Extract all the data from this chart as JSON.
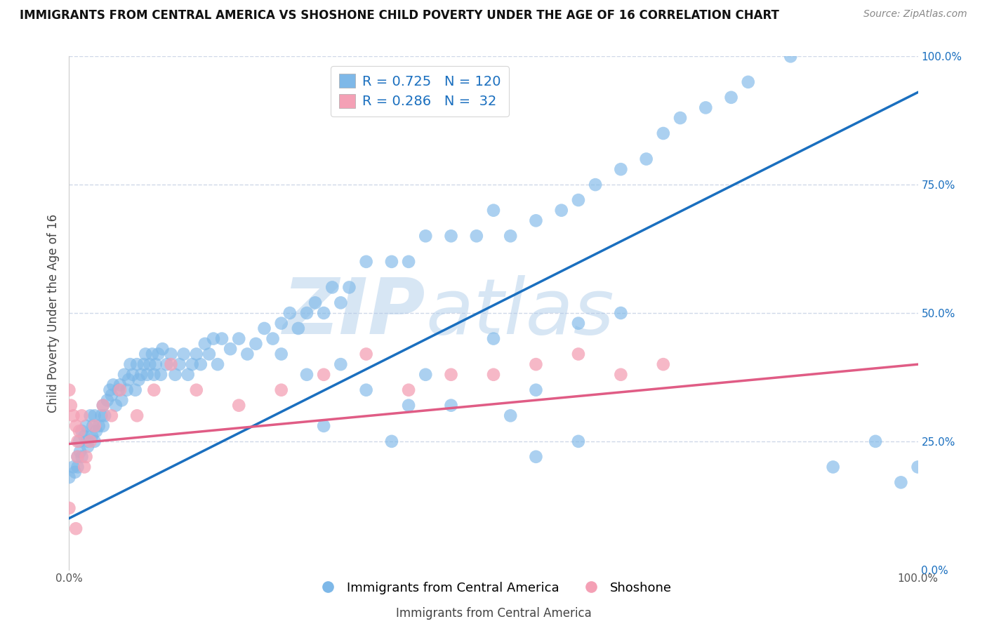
{
  "title": "IMMIGRANTS FROM CENTRAL AMERICA VS SHOSHONE CHILD POVERTY UNDER THE AGE OF 16 CORRELATION CHART",
  "source": "Source: ZipAtlas.com",
  "ylabel": "Child Poverty Under the Age of 16",
  "x_bottom_label": "Immigrants from Central America",
  "watermark_zip": "ZIP",
  "watermark_atlas": "atlas",
  "blue_label": "Immigrants from Central America",
  "pink_label": "Shoshone",
  "blue_R": 0.725,
  "blue_N": 120,
  "pink_R": 0.286,
  "pink_N": 32,
  "blue_color": "#7EB8E8",
  "pink_color": "#F4A0B5",
  "blue_line_color": "#1A6FBF",
  "pink_line_color": "#E05C85",
  "background_color": "#ffffff",
  "grid_color": "#d0d8e8",
  "xlim": [
    0.0,
    1.0
  ],
  "ylim": [
    0.0,
    1.0
  ],
  "right_ytick_labels": [
    "0.0%",
    "25.0%",
    "50.0%",
    "75.0%",
    "100.0%"
  ],
  "right_ytick_values": [
    0.0,
    0.25,
    0.5,
    0.75,
    1.0
  ],
  "blue_scatter_x": [
    0.0,
    0.005,
    0.007,
    0.01,
    0.01,
    0.012,
    0.013,
    0.015,
    0.015,
    0.018,
    0.02,
    0.022,
    0.022,
    0.025,
    0.027,
    0.028,
    0.03,
    0.03,
    0.032,
    0.035,
    0.038,
    0.04,
    0.04,
    0.042,
    0.045,
    0.048,
    0.05,
    0.052,
    0.055,
    0.058,
    0.06,
    0.062,
    0.065,
    0.068,
    0.07,
    0.072,
    0.075,
    0.078,
    0.08,
    0.082,
    0.085,
    0.088,
    0.09,
    0.092,
    0.095,
    0.098,
    0.1,
    0.102,
    0.105,
    0.108,
    0.11,
    0.115,
    0.12,
    0.125,
    0.13,
    0.135,
    0.14,
    0.145,
    0.15,
    0.155,
    0.16,
    0.165,
    0.17,
    0.175,
    0.18,
    0.19,
    0.2,
    0.21,
    0.22,
    0.23,
    0.24,
    0.25,
    0.26,
    0.27,
    0.28,
    0.29,
    0.3,
    0.31,
    0.32,
    0.33,
    0.35,
    0.38,
    0.4,
    0.42,
    0.45,
    0.48,
    0.5,
    0.52,
    0.55,
    0.58,
    0.6,
    0.62,
    0.65,
    0.68,
    0.7,
    0.72,
    0.75,
    0.78,
    0.8,
    0.85,
    0.9,
    0.95,
    0.98,
    1.0,
    0.55,
    0.6,
    0.45,
    0.3,
    0.35,
    0.4,
    0.25,
    0.28,
    0.32,
    0.38,
    0.42,
    0.5,
    0.52,
    0.55,
    0.6,
    0.65
  ],
  "blue_scatter_y": [
    0.18,
    0.2,
    0.19,
    0.22,
    0.2,
    0.25,
    0.23,
    0.27,
    0.22,
    0.26,
    0.28,
    0.24,
    0.25,
    0.3,
    0.26,
    0.28,
    0.3,
    0.25,
    0.27,
    0.28,
    0.3,
    0.32,
    0.28,
    0.3,
    0.33,
    0.35,
    0.34,
    0.36,
    0.32,
    0.35,
    0.36,
    0.33,
    0.38,
    0.35,
    0.37,
    0.4,
    0.38,
    0.35,
    0.4,
    0.37,
    0.38,
    0.4,
    0.42,
    0.38,
    0.4,
    0.42,
    0.38,
    0.4,
    0.42,
    0.38,
    0.43,
    0.4,
    0.42,
    0.38,
    0.4,
    0.42,
    0.38,
    0.4,
    0.42,
    0.4,
    0.44,
    0.42,
    0.45,
    0.4,
    0.45,
    0.43,
    0.45,
    0.42,
    0.44,
    0.47,
    0.45,
    0.48,
    0.5,
    0.47,
    0.5,
    0.52,
    0.5,
    0.55,
    0.52,
    0.55,
    0.6,
    0.6,
    0.6,
    0.65,
    0.65,
    0.65,
    0.7,
    0.65,
    0.68,
    0.7,
    0.72,
    0.75,
    0.78,
    0.8,
    0.85,
    0.88,
    0.9,
    0.92,
    0.95,
    1.0,
    0.2,
    0.25,
    0.17,
    0.2,
    0.22,
    0.25,
    0.32,
    0.28,
    0.35,
    0.32,
    0.42,
    0.38,
    0.4,
    0.25,
    0.38,
    0.45,
    0.3,
    0.35,
    0.48,
    0.5
  ],
  "pink_scatter_x": [
    0.0,
    0.002,
    0.005,
    0.008,
    0.01,
    0.01,
    0.012,
    0.015,
    0.018,
    0.02,
    0.025,
    0.03,
    0.04,
    0.05,
    0.06,
    0.08,
    0.1,
    0.12,
    0.15,
    0.2,
    0.25,
    0.3,
    0.35,
    0.4,
    0.45,
    0.5,
    0.55,
    0.6,
    0.65,
    0.7,
    0.0,
    0.008
  ],
  "pink_scatter_y": [
    0.35,
    0.32,
    0.3,
    0.28,
    0.25,
    0.22,
    0.27,
    0.3,
    0.2,
    0.22,
    0.25,
    0.28,
    0.32,
    0.3,
    0.35,
    0.3,
    0.35,
    0.4,
    0.35,
    0.32,
    0.35,
    0.38,
    0.42,
    0.35,
    0.38,
    0.38,
    0.4,
    0.42,
    0.38,
    0.4,
    0.12,
    0.08
  ],
  "blue_trend_x": [
    0.0,
    1.0
  ],
  "blue_trend_y": [
    0.1,
    0.93
  ],
  "pink_trend_x": [
    0.0,
    1.0
  ],
  "pink_trend_y": [
    0.245,
    0.4
  ]
}
